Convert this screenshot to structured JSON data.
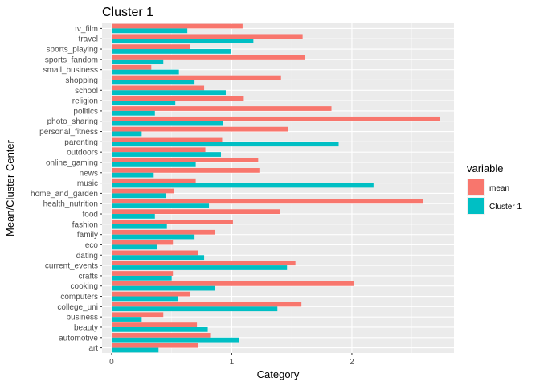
{
  "chart_data": {
    "type": "bar",
    "orientation": "horizontal",
    "title": "Cluster 1",
    "xlabel": "Category",
    "ylabel": "Mean/Cluster Center",
    "xlim": [
      -0.08,
      2.85
    ],
    "xticks": [
      0,
      1,
      2
    ],
    "grid": true,
    "legend_title": "variable",
    "legend_position": "right",
    "categories": [
      "art",
      "automotive",
      "beauty",
      "business",
      "college_uni",
      "computers",
      "cooking",
      "crafts",
      "current_events",
      "dating",
      "eco",
      "family",
      "fashion",
      "food",
      "health_nutrition",
      "home_and_garden",
      "music",
      "news",
      "online_gaming",
      "outdoors",
      "parenting",
      "personal_fitness",
      "photo_sharing",
      "politics",
      "religion",
      "school",
      "shopping",
      "small_business",
      "sports_fandom",
      "sports_playing",
      "travel",
      "tv_film"
    ],
    "series": [
      {
        "name": "mean",
        "color": "#f8766d",
        "values": [
          0.72,
          0.82,
          0.71,
          0.43,
          1.58,
          0.65,
          2.02,
          0.51,
          1.53,
          0.72,
          0.51,
          0.86,
          1.01,
          1.4,
          2.59,
          0.52,
          0.7,
          1.23,
          1.22,
          0.78,
          0.92,
          1.47,
          2.73,
          1.83,
          1.1,
          0.77,
          1.41,
          0.33,
          1.61,
          0.65,
          1.59,
          1.09
        ]
      },
      {
        "name": "Cluster 1",
        "color": "#00bfc4",
        "values": [
          0.39,
          1.06,
          0.8,
          0.25,
          1.38,
          0.55,
          0.86,
          0.5,
          1.46,
          0.77,
          0.38,
          0.69,
          0.46,
          0.36,
          0.81,
          0.45,
          2.18,
          0.35,
          0.7,
          0.91,
          1.89,
          0.25,
          0.93,
          0.36,
          0.53,
          0.95,
          0.69,
          0.56,
          0.43,
          0.99,
          1.18,
          0.63
        ]
      }
    ]
  }
}
